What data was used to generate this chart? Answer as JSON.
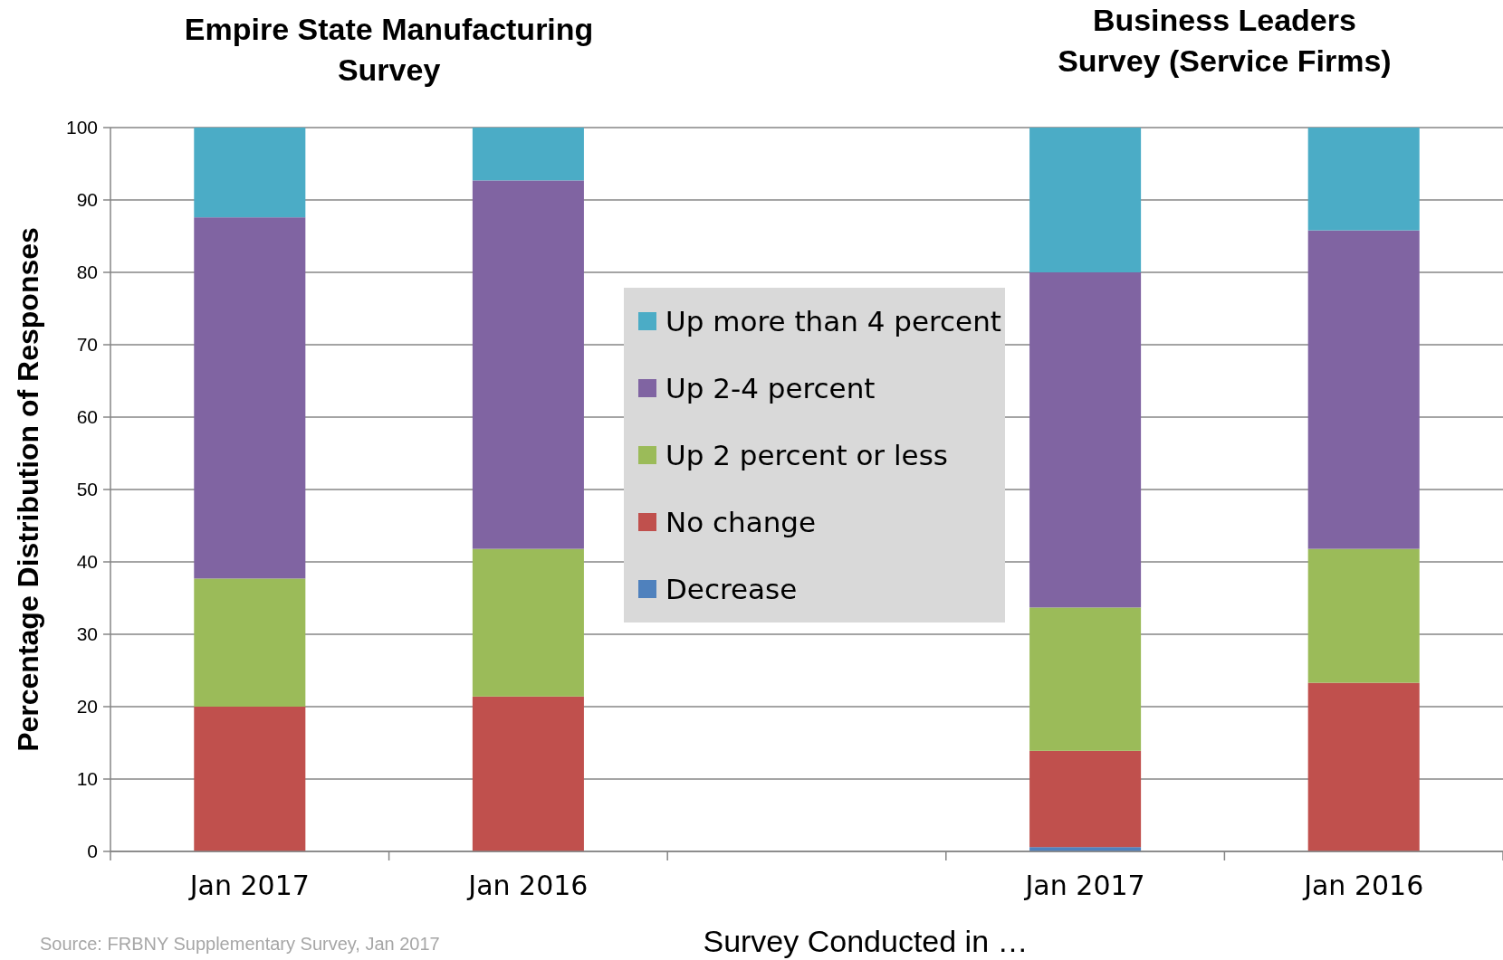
{
  "chart_data": {
    "type": "bar",
    "stacked": true,
    "ylabel": "Percentage Distribution of Responses",
    "xlabel": "Survey Conducted in …",
    "annotations": [
      "Empire State Manufacturing Survey",
      "Business Leaders Survey (Service Firms)",
      "Source: FRBNY Supplementary Survey, Jan 2017"
    ],
    "categories": [
      "Jan 2017",
      "Jan 2016",
      null,
      "Jan 2017",
      "Jan 2016"
    ],
    "series": [
      {
        "name": "Decrease",
        "color": "#4f81bd",
        "values": [
          0,
          0,
          null,
          0.6,
          0
        ]
      },
      {
        "name": "No change",
        "color": "#c0504d",
        "values": [
          20.0,
          21.4,
          null,
          13.3,
          23.3
        ]
      },
      {
        "name": "Up 2 percent or less",
        "color": "#9bbb59",
        "values": [
          17.7,
          20.4,
          null,
          19.8,
          18.5
        ]
      },
      {
        "name": "Up 2-4 percent",
        "color": "#8064a2",
        "values": [
          49.9,
          50.9,
          null,
          46.3,
          44.0
        ]
      },
      {
        "name": "Up more than 4 percent",
        "color": "#4bacc6",
        "values": [
          12.4,
          7.3,
          null,
          20.0,
          14.2
        ]
      }
    ],
    "ylim": [
      0,
      100
    ],
    "yticks": [
      0,
      10,
      20,
      30,
      40,
      50,
      60,
      70,
      80,
      90,
      100
    ],
    "grid": "y",
    "legend": "center"
  }
}
